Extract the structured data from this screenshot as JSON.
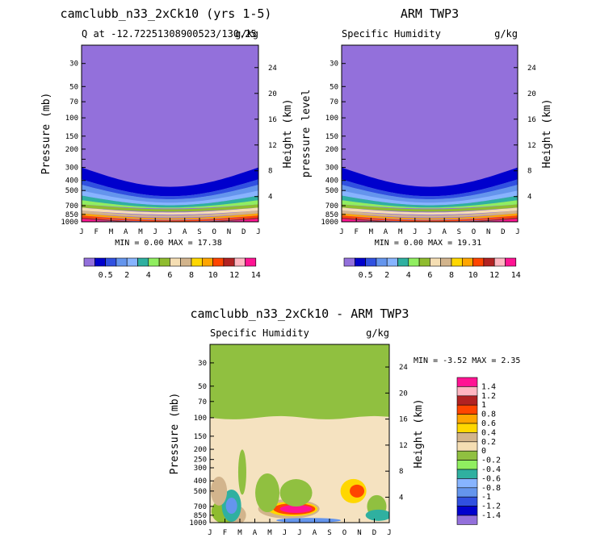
{
  "chart_data": [
    {
      "type": "heatmap",
      "title": "camclubb_n33_2xCk10 (yrs 1-5)",
      "subtitle_left": "Q at -12.72251308900523/130.25",
      "subtitle_right": "g/kg",
      "ylabel": "Pressure (mb)",
      "y2label": "Height (km)",
      "x_ticks": [
        "J",
        "F",
        "M",
        "A",
        "M",
        "J",
        "J",
        "A",
        "S",
        "O",
        "N",
        "D",
        "J"
      ],
      "p_ticks": [
        30,
        50,
        70,
        100,
        150,
        200,
        250,
        300,
        400,
        500,
        700,
        850,
        1000
      ],
      "p_tick_labels": [
        "30",
        "50",
        "70",
        "100",
        "150",
        "200",
        "",
        "300",
        "400",
        "500",
        "700",
        "850",
        "1000"
      ],
      "p_range": [
        20,
        1000
      ],
      "z_ticks": [
        4,
        8,
        12,
        16,
        20,
        24
      ],
      "min_max_text": "MIN =    0.00 MAX =  17.38",
      "colorbar_labels": [
        "0.5",
        "2",
        "4",
        "6",
        "8",
        "10",
        "12",
        "14"
      ]
    },
    {
      "type": "heatmap",
      "title": "ARM TWP3",
      "subtitle_left": "Specific Humidity",
      "subtitle_right": "g/kg",
      "ylabel": "pressure  level",
      "y2label": "Height (km)",
      "x_ticks": [
        "J",
        "F",
        "M",
        "A",
        "M",
        "J",
        "J",
        "A",
        "S",
        "O",
        "N",
        "D",
        "J"
      ],
      "p_ticks": [
        30,
        50,
        70,
        100,
        150,
        200,
        250,
        300,
        400,
        500,
        700,
        850,
        1000
      ],
      "p_tick_labels": [
        "30",
        "50",
        "70",
        "100",
        "150",
        "200",
        "",
        "300",
        "400",
        "500",
        "700",
        "850",
        "1000"
      ],
      "p_range": [
        20,
        1000
      ],
      "z_ticks": [
        4,
        8,
        12,
        16,
        20,
        24
      ],
      "min_max_text": "MIN =    0.00 MAX =  19.31",
      "colorbar_labels": [
        "0.5",
        "2",
        "4",
        "6",
        "8",
        "10",
        "12",
        "14"
      ]
    },
    {
      "type": "heatmap",
      "title": "camclubb_n33_2xCk10 - ARM TWP3",
      "subtitle_left": "Specific Humidity",
      "subtitle_right": "g/kg",
      "ylabel": "Pressure (mb)",
      "y2label": "Height (km)",
      "x_ticks": [
        "J",
        "F",
        "M",
        "A",
        "M",
        "J",
        "J",
        "A",
        "S",
        "O",
        "N",
        "D",
        "J"
      ],
      "p_ticks": [
        30,
        50,
        70,
        100,
        150,
        200,
        250,
        300,
        400,
        500,
        700,
        850,
        1000
      ],
      "p_tick_labels": [
        "30",
        "50",
        "70",
        "100",
        "150",
        "200",
        "250",
        "300",
        "400",
        "500",
        "700",
        "850",
        "1000"
      ],
      "p_range": [
        20,
        1000
      ],
      "z_ticks": [
        4,
        8,
        12,
        16,
        20,
        24
      ],
      "min_max_text": "MIN =   -3.52 MAX =    2.35",
      "colorbar_labels": [
        "1.4",
        "1.2",
        "1",
        "0.8",
        "0.6",
        "0.4",
        "0.2",
        "0",
        "-0.2",
        "-0.4",
        "-0.6",
        "-0.8",
        "-1",
        "-1.2",
        "-1.4"
      ]
    }
  ],
  "colors": {
    "upper_abs": "#9370db",
    "upper_diff": "#90c040",
    "upper_diff_band": "#f5e2c0",
    "scale_abs": [
      "#9370db",
      "#0000cd",
      "#3050e0",
      "#6495ed",
      "#87b4ff",
      "#2fb0a0",
      "#90ee60",
      "#8fbc2f",
      "#f5deb3",
      "#d2b48c",
      "#ffd700",
      "#ffa500",
      "#ff4500",
      "#b22222",
      "#ffb6c1",
      "#ff1493"
    ],
    "scale_diff": [
      "#ff1493",
      "#ffb6c1",
      "#b22222",
      "#ff4500",
      "#ffa500",
      "#ffd700",
      "#d2b48c",
      "#f5deb3",
      "#90c040",
      "#90ee60",
      "#2fb0a0",
      "#87b4ff",
      "#6495ed",
      "#3050e0",
      "#0000cd",
      "#9370db"
    ]
  }
}
